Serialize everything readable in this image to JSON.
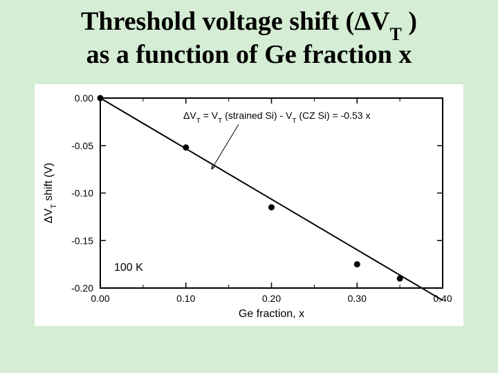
{
  "title_line1_prefix": "Threshold voltage shift (",
  "title_line1_delta": "Δ",
  "title_line1_V": "V",
  "title_line1_sub": "T",
  "title_line1_suffix": " )",
  "title_line2": "as a function of Ge fraction x",
  "chart": {
    "type": "scatter-line",
    "xlabel": "Ge fraction, x",
    "ylabel": "ΔV",
    "ylabel_sub": "T",
    "ylabel_suffix": " shift (V)",
    "xlim": [
      0.0,
      0.4
    ],
    "ylim": [
      -0.2,
      0.0
    ],
    "xticks": [
      0.0,
      0.1,
      0.2,
      0.3,
      0.4
    ],
    "xtick_labels": [
      "0.00",
      "0.10",
      "0.20",
      "0.30",
      "0.40"
    ],
    "yticks": [
      0.0,
      -0.05,
      -0.1,
      -0.15,
      -0.2
    ],
    "ytick_labels": [
      "0.00",
      "-0.05",
      "-0.10",
      "-0.15",
      "-0.20"
    ],
    "points": [
      {
        "x": 0.0,
        "y": 0.0
      },
      {
        "x": 0.1,
        "y": -0.052
      },
      {
        "x": 0.2,
        "y": -0.115
      },
      {
        "x": 0.3,
        "y": -0.175
      },
      {
        "x": 0.35,
        "y": -0.19
      }
    ],
    "fit_line": {
      "x1": 0.0,
      "y1": 0.0,
      "x2": 0.4,
      "y2": -0.213
    },
    "equation_prefix": "ΔV",
    "equation_sub1": "T",
    "equation_mid": " = V",
    "equation_sub2": "T",
    "equation_strained": " (strained Si) - V",
    "equation_sub3": "T",
    "equation_cz": " (CZ Si) = -0.53 x",
    "temp_label": "100 K",
    "background_color": "#ffffff",
    "page_background": "#d4edd4",
    "axis_color": "#000000",
    "point_color": "#000000",
    "line_color": "#000000",
    "title_fontsize": 38,
    "label_fontsize": 16,
    "tick_fontsize": 14,
    "marker_radius": 4.5,
    "line_width": 2,
    "axis_width": 2
  }
}
